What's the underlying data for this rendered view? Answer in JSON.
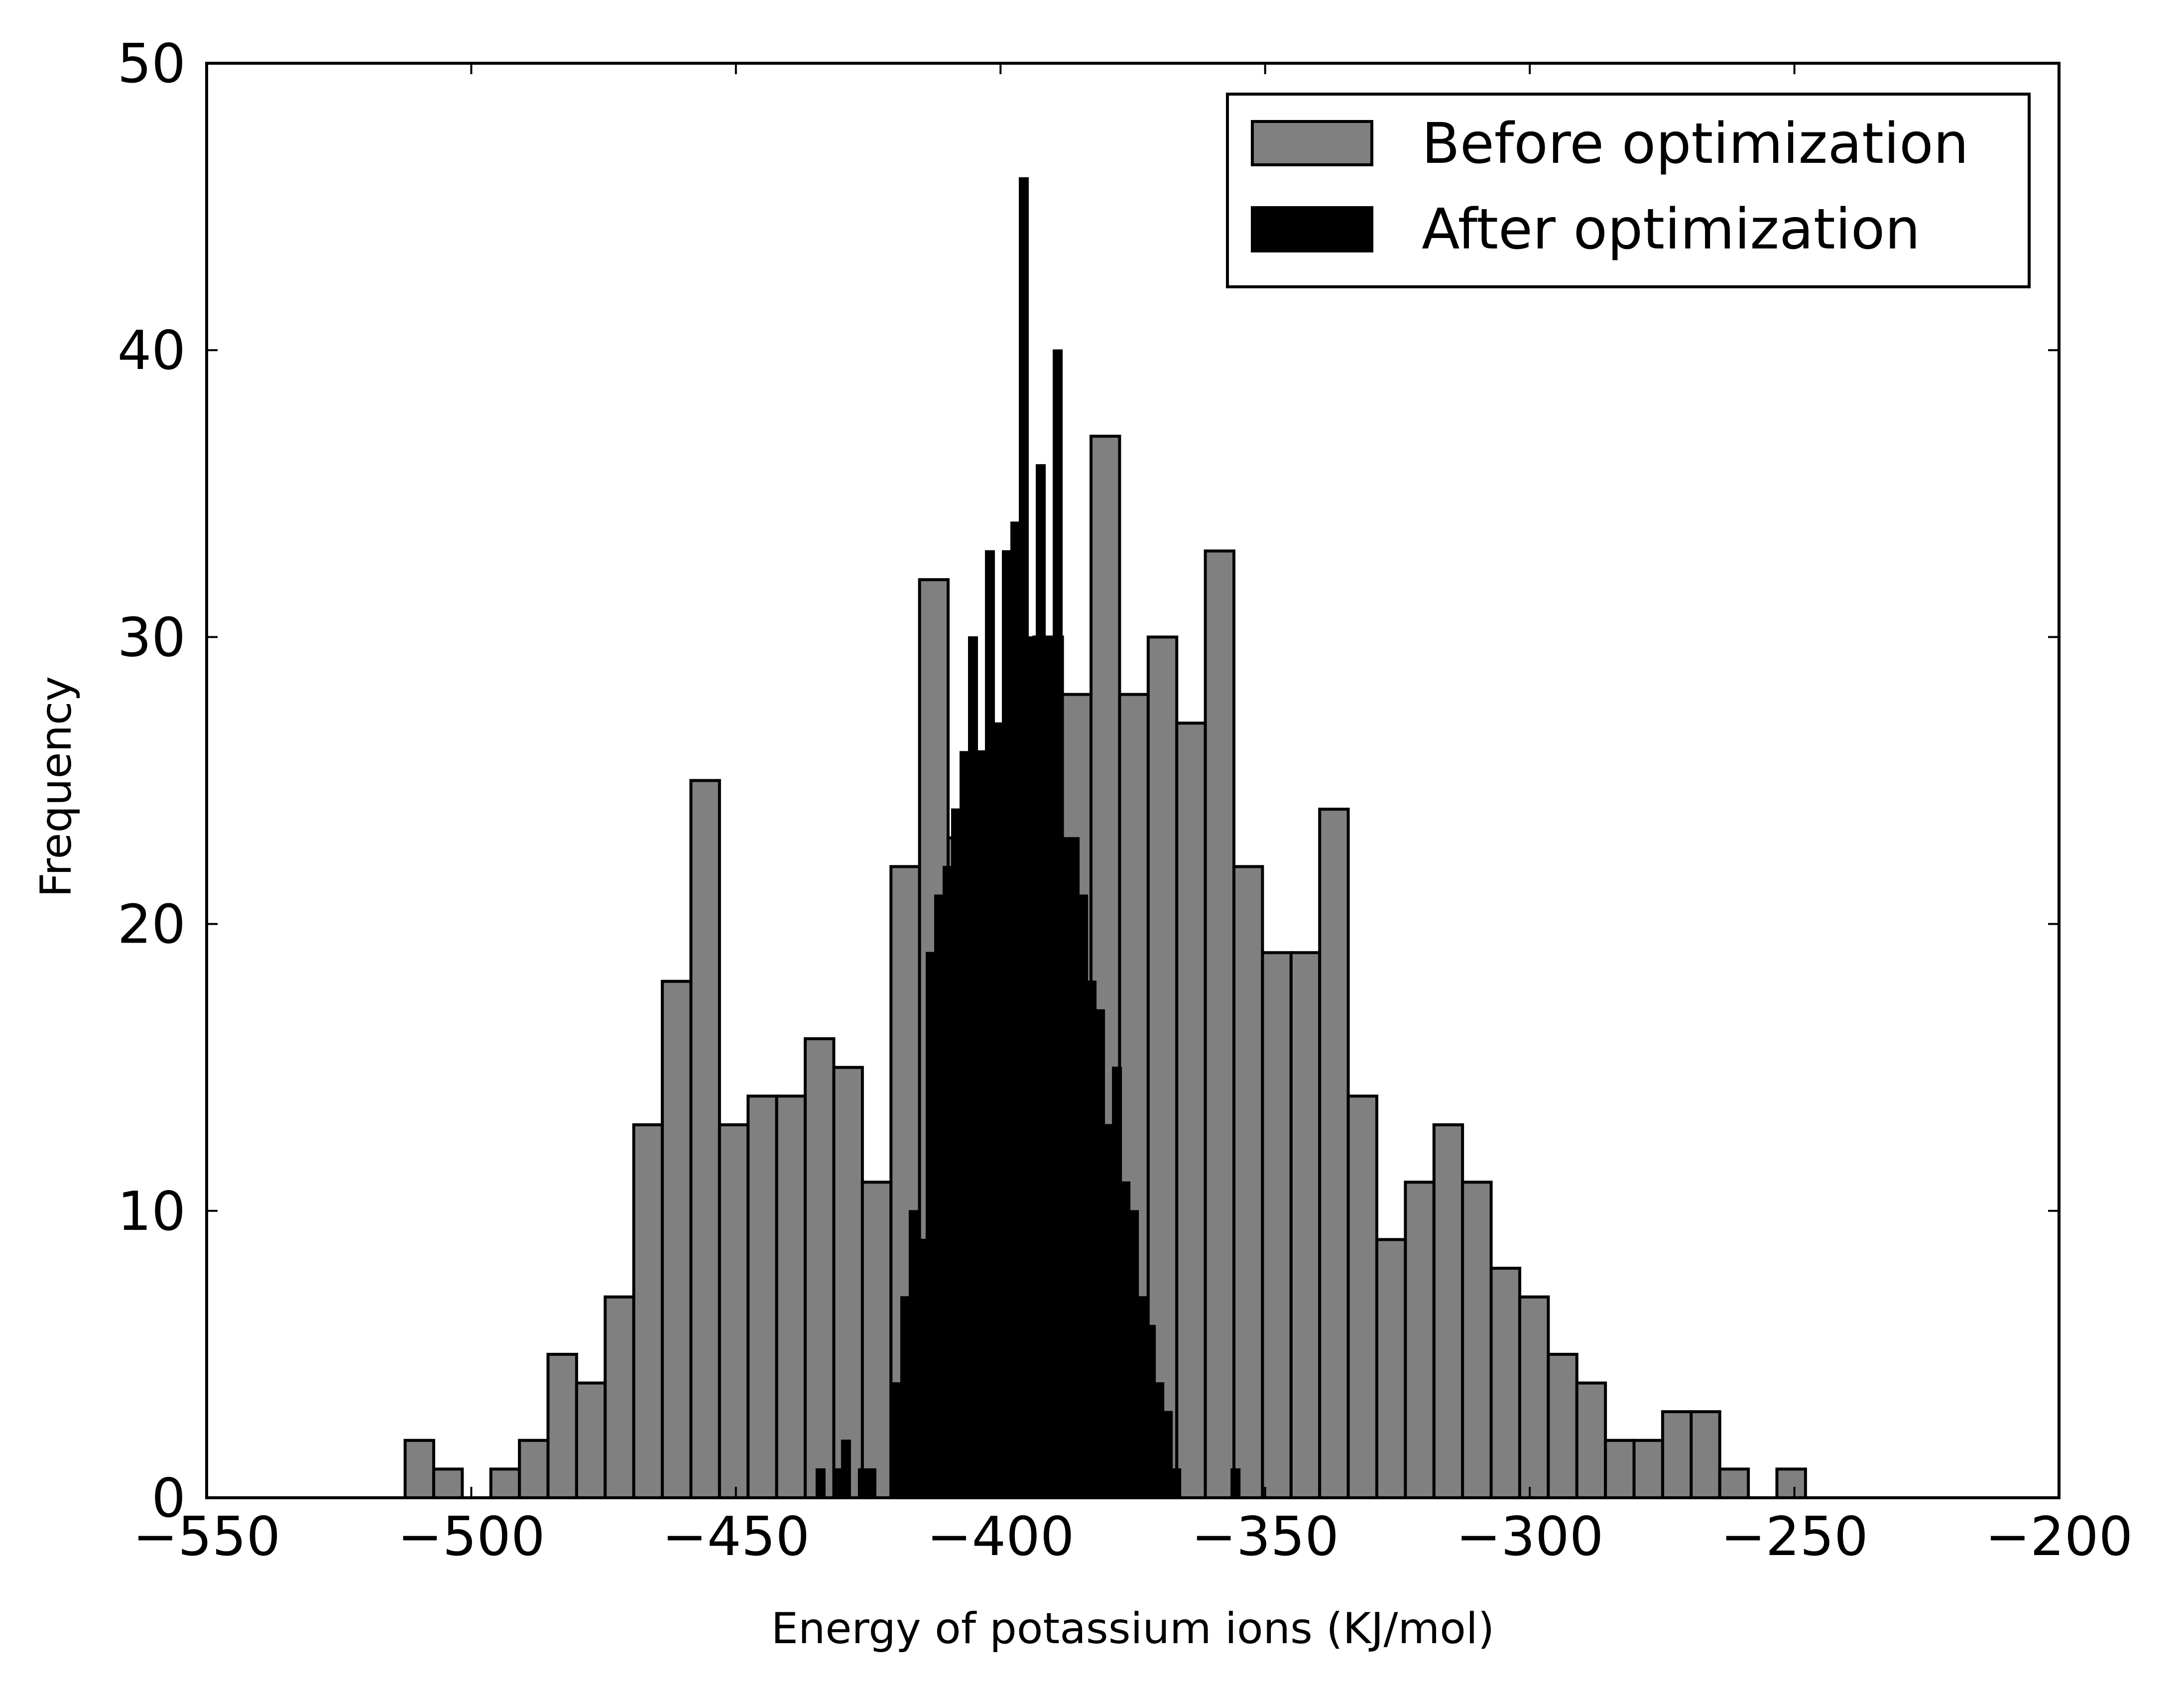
{
  "chart_data": {
    "type": "bar",
    "title": "",
    "xlabel": "Energy of potassium ions (KJ/mol)",
    "ylabel": "Frequency",
    "xlim": [
      -550,
      -200
    ],
    "ylim": [
      0,
      50
    ],
    "x_ticks": [
      -550,
      -500,
      -450,
      -400,
      -350,
      -300,
      -250,
      -200
    ],
    "x_tick_labels": [
      "−550",
      "−500",
      "−450",
      "−400",
      "−350",
      "−300",
      "−250",
      "−200"
    ],
    "y_ticks": [
      0,
      10,
      20,
      30,
      40,
      50
    ],
    "y_tick_labels": [
      "0",
      "10",
      "20",
      "30",
      "40",
      "50"
    ],
    "grid": false,
    "legend_position": "top-right",
    "series": [
      {
        "name": "Before optimization",
        "color": "#808080",
        "bin_width": 5.4,
        "bin_left_edges": [
          -512.5,
          -507.1,
          -501.7,
          -496.3,
          -490.9,
          -485.5,
          -480.1,
          -474.7,
          -469.3,
          -463.9,
          -458.5,
          -453.1,
          -447.7,
          -442.3,
          -436.9,
          -431.5,
          -426.1,
          -420.7,
          -415.3,
          -409.9,
          -404.5,
          -399.1,
          -393.7,
          -388.3,
          -382.9,
          -377.5,
          -372.1,
          -366.7,
          -361.3,
          -355.9,
          -350.5,
          -345.1,
          -339.7,
          -334.3,
          -328.9,
          -323.5,
          -318.1,
          -312.7,
          -307.3,
          -301.9,
          -296.5,
          -291.1,
          -285.7,
          -280.3,
          -274.9,
          -269.5,
          -264.1,
          -258.7,
          -253.3
        ],
        "values": [
          2,
          1,
          0,
          1,
          2,
          5,
          4,
          7,
          13,
          18,
          25,
          13,
          14,
          14,
          16,
          15,
          11,
          22,
          32,
          23,
          26,
          27,
          30,
          28,
          37,
          28,
          30,
          27,
          33,
          22,
          19,
          19,
          24,
          14,
          9,
          11,
          13,
          11,
          8,
          7,
          5,
          4,
          2,
          2,
          3,
          3,
          1,
          0,
          1
        ]
      },
      {
        "name": "After optimization",
        "color": "#000000",
        "bin_width": 1.6,
        "bin_left_edges": [
          -434.8,
          -433.2,
          -431.6,
          -430.0,
          -428.4,
          -426.8,
          -425.2,
          -423.6,
          -422.0,
          -420.4,
          -418.8,
          -417.2,
          -415.6,
          -414.0,
          -412.4,
          -410.8,
          -409.2,
          -407.6,
          -406.0,
          -404.4,
          -402.8,
          -401.2,
          -399.6,
          -398.0,
          -396.4,
          -394.8,
          -393.2,
          -391.6,
          -390.0,
          -388.4,
          -386.8,
          -385.2,
          -383.6,
          -382.0,
          -380.4,
          -378.8,
          -377.2,
          -375.6,
          -374.0,
          -372.4,
          -370.8,
          -369.2,
          -367.6,
          -366.0,
          -364.4,
          -362.8,
          -361.2,
          -359.6,
          -358.0,
          -356.4,
          -354.8
        ],
        "values": [
          1,
          0,
          1,
          2,
          0,
          1,
          1,
          0,
          0,
          4,
          7,
          10,
          9,
          19,
          21,
          22,
          24,
          26,
          30,
          26,
          33,
          27,
          33,
          34,
          46,
          30,
          36,
          30,
          40,
          23,
          23,
          21,
          18,
          17,
          13,
          15,
          11,
          10,
          7,
          6,
          4,
          3,
          1,
          0,
          0,
          0,
          0,
          0,
          0,
          1,
          0
        ]
      }
    ]
  }
}
